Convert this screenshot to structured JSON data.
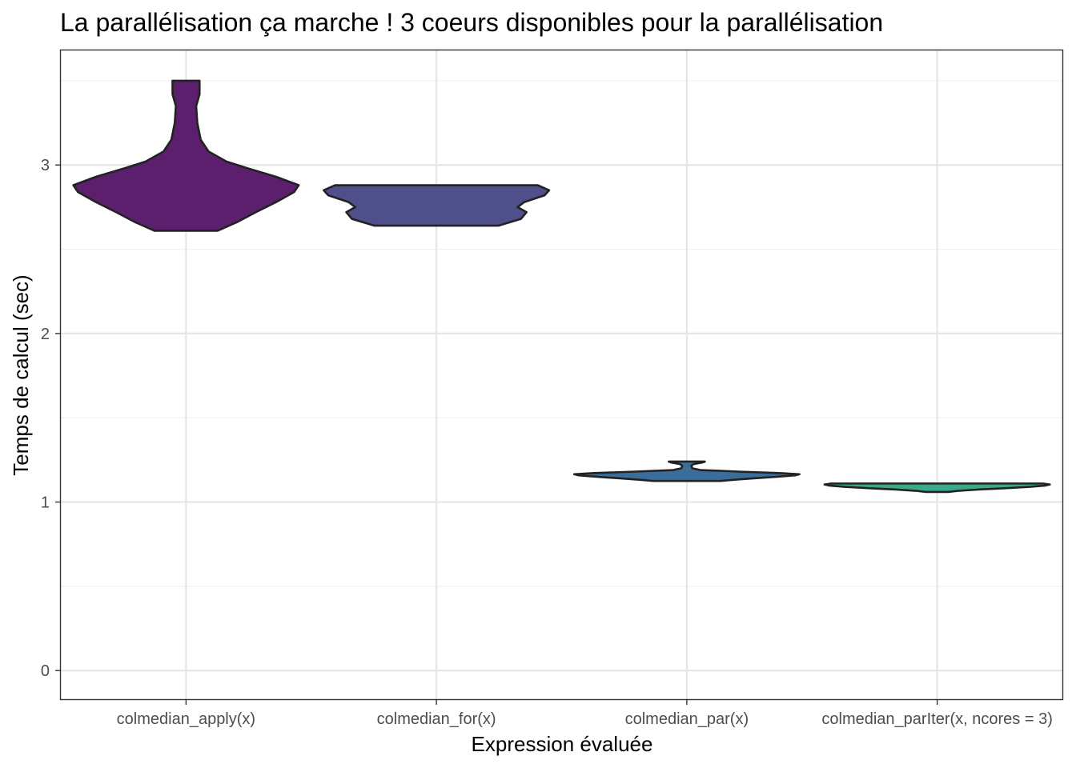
{
  "chart_data": {
    "type": "violin",
    "title": "La parallélisation ça marche ! 3 coeurs disponibles pour la parallélisation",
    "xlabel": "Expression évaluée",
    "ylabel": "Temps de calcul (sec)",
    "ylim": [
      -0.17,
      3.68
    ],
    "y_ticks": [
      0,
      1,
      2,
      3
    ],
    "y_minor_ticks": [
      0.5,
      1.5,
      2.5,
      3.5
    ],
    "grid": true,
    "legend": "none",
    "categories": [
      "colmedian_apply(x)",
      "colmedian_for(x)",
      "colmedian_par(x)",
      "colmedian_parIter(x, ncores = 3)"
    ],
    "series": [
      {
        "category": "colmedian_apply(x)",
        "color": "#5b1f6e",
        "min": 2.61,
        "max": 3.5,
        "density": [
          [
            2.61,
            0.28
          ],
          [
            2.66,
            0.45
          ],
          [
            2.72,
            0.62
          ],
          [
            2.78,
            0.8
          ],
          [
            2.84,
            0.96
          ],
          [
            2.88,
            1.0
          ],
          [
            2.93,
            0.8
          ],
          [
            2.98,
            0.55
          ],
          [
            3.02,
            0.36
          ],
          [
            3.08,
            0.2
          ],
          [
            3.15,
            0.13
          ],
          [
            3.25,
            0.1
          ],
          [
            3.35,
            0.09
          ],
          [
            3.42,
            0.12
          ],
          [
            3.47,
            0.12
          ],
          [
            3.5,
            0.12
          ]
        ]
      },
      {
        "category": "colmedian_for(x)",
        "color": "#4f4f8c",
        "min": 2.64,
        "max": 2.88,
        "density": [
          [
            2.64,
            0.55
          ],
          [
            2.68,
            0.75
          ],
          [
            2.72,
            0.8
          ],
          [
            2.75,
            0.72
          ],
          [
            2.78,
            0.78
          ],
          [
            2.82,
            0.96
          ],
          [
            2.85,
            1.0
          ],
          [
            2.88,
            0.9
          ]
        ]
      },
      {
        "category": "colmedian_par(x)",
        "color": "#3a6e9a",
        "min": 1.125,
        "max": 1.24,
        "density": [
          [
            1.125,
            0.3
          ],
          [
            1.132,
            0.42
          ],
          [
            1.14,
            0.58
          ],
          [
            1.15,
            0.8
          ],
          [
            1.158,
            0.96
          ],
          [
            1.165,
            1.0
          ],
          [
            1.172,
            0.82
          ],
          [
            1.18,
            0.48
          ],
          [
            1.19,
            0.12
          ],
          [
            1.2,
            0.05
          ],
          [
            1.215,
            0.04
          ],
          [
            1.225,
            0.06
          ],
          [
            1.235,
            0.14
          ],
          [
            1.24,
            0.16
          ]
        ]
      },
      {
        "category": "colmedian_parIter(x, ncores = 3)",
        "color": "#3aaa8a",
        "min": 1.06,
        "max": 1.11,
        "density": [
          [
            1.06,
            0.1
          ],
          [
            1.066,
            0.18
          ],
          [
            1.074,
            0.36
          ],
          [
            1.082,
            0.6
          ],
          [
            1.09,
            0.82
          ],
          [
            1.098,
            0.96
          ],
          [
            1.104,
            1.0
          ],
          [
            1.11,
            0.94
          ]
        ]
      }
    ]
  }
}
